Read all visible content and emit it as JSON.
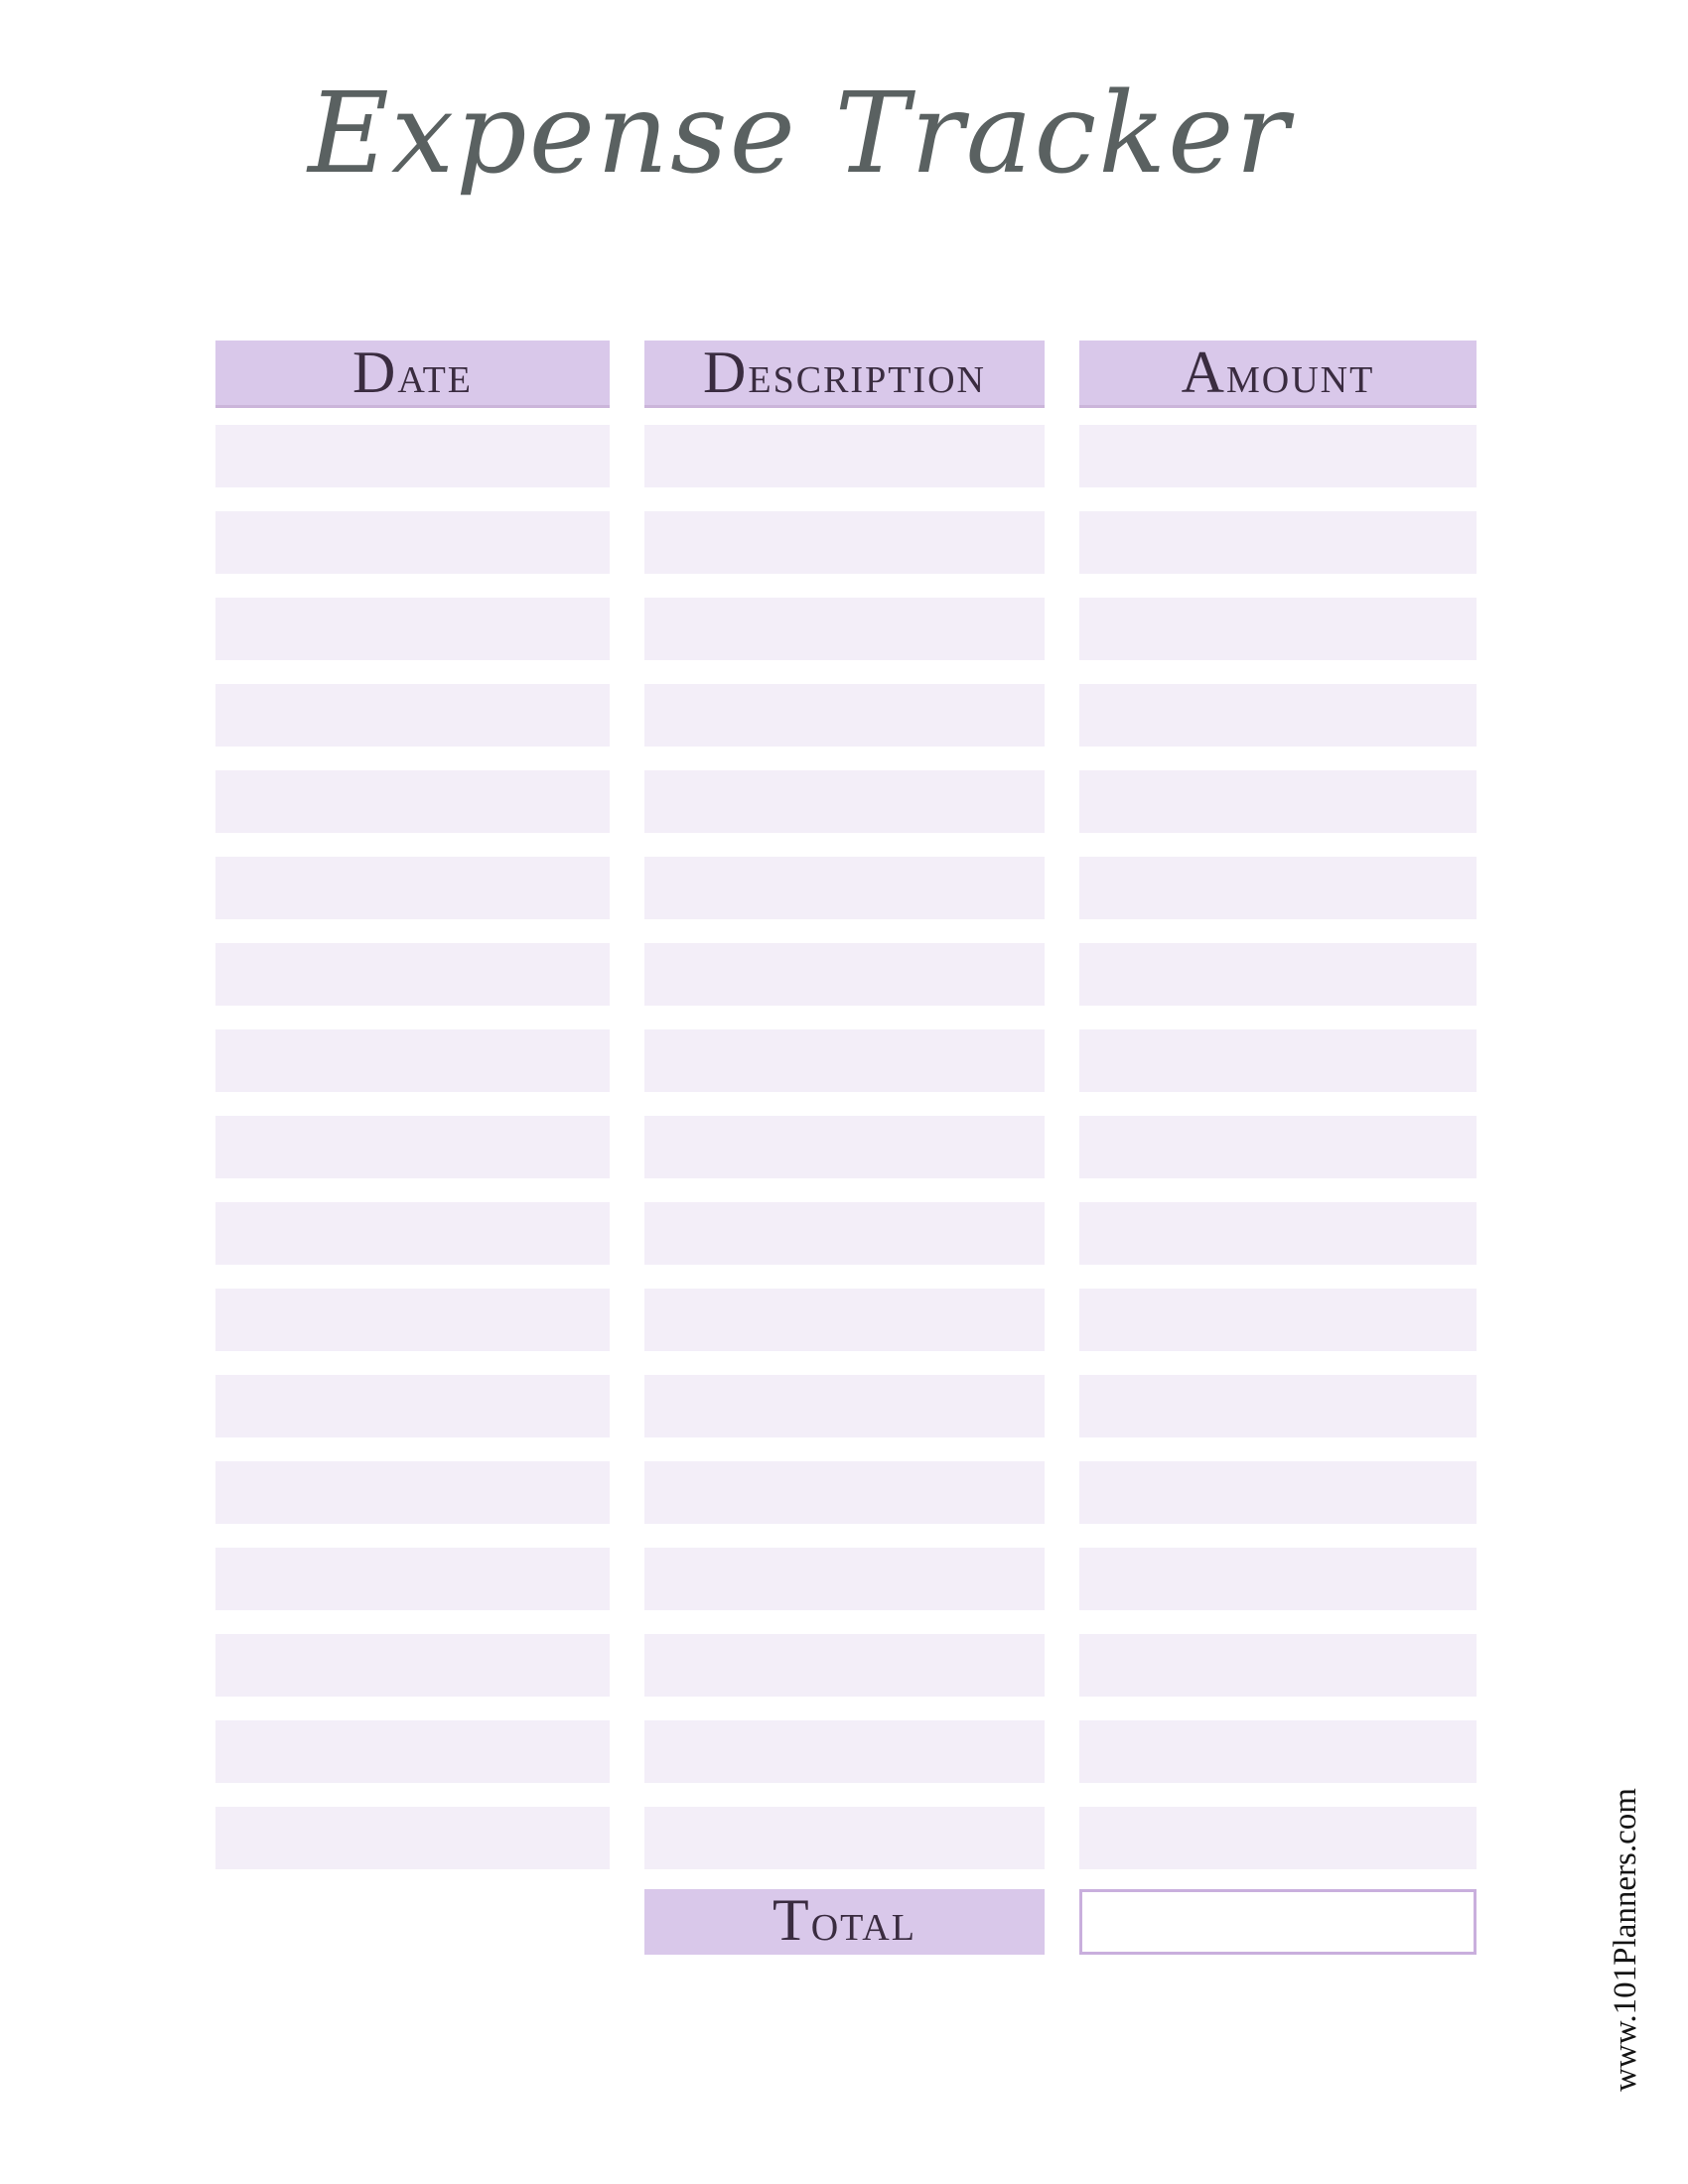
{
  "page": {
    "title": "Expense Tracker",
    "watermark": "www.101Planners.com"
  },
  "table": {
    "columns": [
      {
        "label": "Date"
      },
      {
        "label": "Description"
      },
      {
        "label": "Amount"
      }
    ],
    "row_count": 17,
    "rows": [
      {
        "date": "",
        "description": "",
        "amount": ""
      },
      {
        "date": "",
        "description": "",
        "amount": ""
      },
      {
        "date": "",
        "description": "",
        "amount": ""
      },
      {
        "date": "",
        "description": "",
        "amount": ""
      },
      {
        "date": "",
        "description": "",
        "amount": ""
      },
      {
        "date": "",
        "description": "",
        "amount": ""
      },
      {
        "date": "",
        "description": "",
        "amount": ""
      },
      {
        "date": "",
        "description": "",
        "amount": ""
      },
      {
        "date": "",
        "description": "",
        "amount": ""
      },
      {
        "date": "",
        "description": "",
        "amount": ""
      },
      {
        "date": "",
        "description": "",
        "amount": ""
      },
      {
        "date": "",
        "description": "",
        "amount": ""
      },
      {
        "date": "",
        "description": "",
        "amount": ""
      },
      {
        "date": "",
        "description": "",
        "amount": ""
      },
      {
        "date": "",
        "description": "",
        "amount": ""
      },
      {
        "date": "",
        "description": "",
        "amount": ""
      },
      {
        "date": "",
        "description": "",
        "amount": ""
      }
    ],
    "total": {
      "label": "Total",
      "value": ""
    }
  },
  "colors": {
    "header_bg": "#d9c8ea",
    "header_border": "#cbb5da",
    "row_bg": "#f3eef8",
    "header_text": "#3a2c40",
    "title_text": "#5a6161",
    "total_box_border": "#c9afdd",
    "watermark_text": "#141414"
  }
}
